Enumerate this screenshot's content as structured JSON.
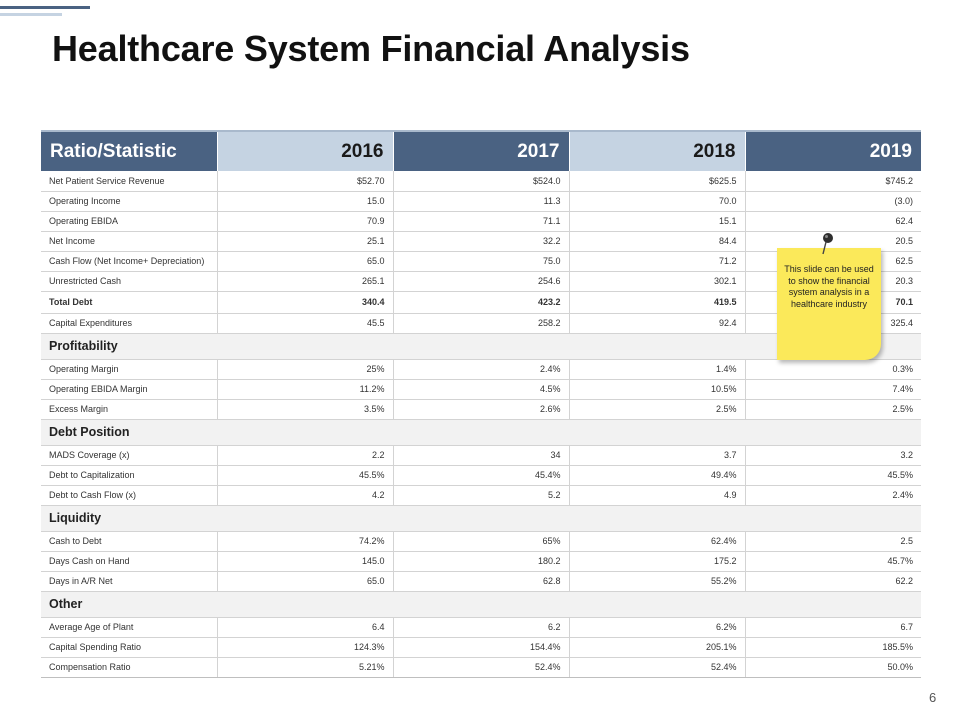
{
  "title": "Healthcare System Financial Analysis",
  "page_number": "6",
  "colors": {
    "header_dark": "#4a6282",
    "header_light": "#c5d3e2",
    "note": "#fbe95a"
  },
  "table": {
    "header": {
      "label": "Ratio/Statistic",
      "years": [
        "2016",
        "2017",
        "2018",
        "2019"
      ]
    },
    "rows": [
      {
        "type": "data",
        "label": "Net Patient Service Revenue",
        "values": [
          "$52.70",
          "$524.0",
          "$625.5",
          "$745.2"
        ]
      },
      {
        "type": "data",
        "label": "Operating  Income",
        "values": [
          "15.0",
          "11.3",
          "70.0",
          "(3.0)"
        ]
      },
      {
        "type": "data",
        "label": "Operating  EBIDA",
        "values": [
          "70.9",
          "71.1",
          "15.1",
          "62.4"
        ]
      },
      {
        "type": "data",
        "label": "Net Income",
        "values": [
          "25.1",
          "32.2",
          "84.4",
          "20.5"
        ]
      },
      {
        "type": "data",
        "label": "Cash Flow (Net Income+ Depreciation)",
        "values": [
          "65.0",
          "75.0",
          "71.2",
          "62.5"
        ]
      },
      {
        "type": "data",
        "label": "Unrestricted Cash",
        "values": [
          "265.1",
          "254.6",
          "302.1",
          "20.3"
        ]
      },
      {
        "type": "bold",
        "label": "Total Debt",
        "values": [
          "340.4",
          "423.2",
          "419.5",
          "70.1"
        ]
      },
      {
        "type": "data",
        "label": "Capital Expenditures",
        "values": [
          "45.5",
          "258.2",
          "92.4",
          "325.4"
        ]
      },
      {
        "type": "section",
        "label": "Profitability"
      },
      {
        "type": "data",
        "label": "Operating  Margin",
        "values": [
          "25%",
          "2.4%",
          "1.4%",
          "0.3%"
        ]
      },
      {
        "type": "data",
        "label": "Operating  EBIDA Margin",
        "values": [
          "11.2%",
          "4.5%",
          "10.5%",
          "7.4%"
        ]
      },
      {
        "type": "data",
        "label": "Excess Margin",
        "values": [
          "3.5%",
          "2.6%",
          "2.5%",
          "2.5%"
        ]
      },
      {
        "type": "section",
        "label": "Debt Position"
      },
      {
        "type": "data",
        "label": "MADS Coverage (x)",
        "values": [
          "2.2",
          "34",
          "3.7",
          "3.2"
        ]
      },
      {
        "type": "data",
        "label": "Debt to Capitalization",
        "values": [
          "45.5%",
          "45.4%",
          "49.4%",
          "45.5%"
        ]
      },
      {
        "type": "data",
        "label": "Debt to Cash Flow (x)",
        "values": [
          "4.2",
          "5.2",
          "4.9",
          "2.4%"
        ]
      },
      {
        "type": "section",
        "label": "Liquidity"
      },
      {
        "type": "data",
        "label": "Cash to Debt",
        "values": [
          "74.2%",
          "65%",
          "62.4%",
          "2.5"
        ]
      },
      {
        "type": "data",
        "label": "Days Cash on Hand",
        "values": [
          "145.0",
          "180.2",
          "175.2",
          "45.7%"
        ]
      },
      {
        "type": "data",
        "label": "Days in A/R Net",
        "values": [
          "65.0",
          "62.8",
          "55.2%",
          "62.2"
        ]
      },
      {
        "type": "section",
        "label": "Other"
      },
      {
        "type": "data",
        "label": "Average Age of Plant",
        "values": [
          "6.4",
          "6.2",
          "6.2%",
          "6.7"
        ]
      },
      {
        "type": "data",
        "label": "Capital Spending  Ratio",
        "values": [
          "124.3%",
          "154.4%",
          "205.1%",
          "185.5%"
        ]
      },
      {
        "type": "data",
        "label": "Compensation Ratio",
        "values": [
          "5.21%",
          "52.4%",
          "52.4%",
          "50.0%"
        ]
      }
    ]
  },
  "sticky_note": {
    "text": "This slide can be used to show the financial system analysis in a healthcare industry",
    "icon": "pushpin-icon"
  }
}
